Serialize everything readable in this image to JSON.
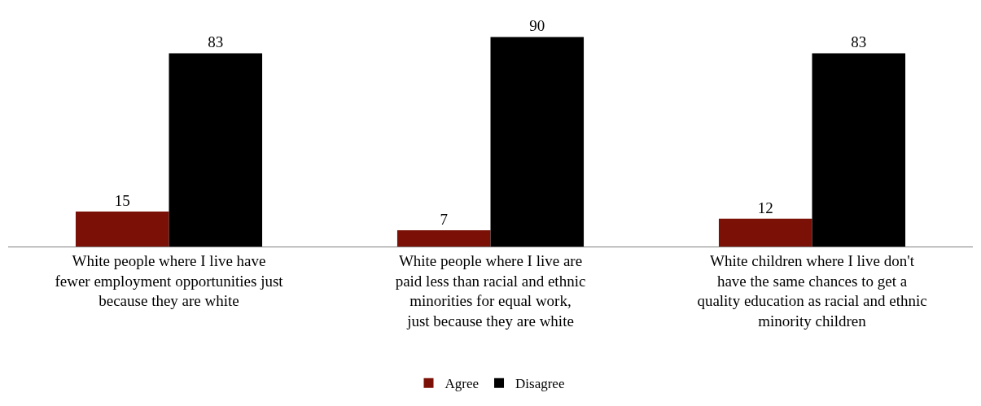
{
  "chart_data": {
    "type": "bar",
    "categories": [
      "White people where I live have\nfewer employment opportunities just\nbecause they are white",
      "White people where I live are\npaid less than racial and ethnic\nminorities for equal work,\njust because they are white",
      "White children where I live don't\nhave the same chances to get a\nquality education as racial and ethnic\nminority children"
    ],
    "series": [
      {
        "name": "Agree",
        "color": "#7b1106",
        "values": [
          15,
          7,
          12
        ]
      },
      {
        "name": "Disagree",
        "color": "#000000",
        "values": [
          83,
          90,
          83
        ]
      }
    ],
    "data_labels": true,
    "legend": "bottom"
  }
}
